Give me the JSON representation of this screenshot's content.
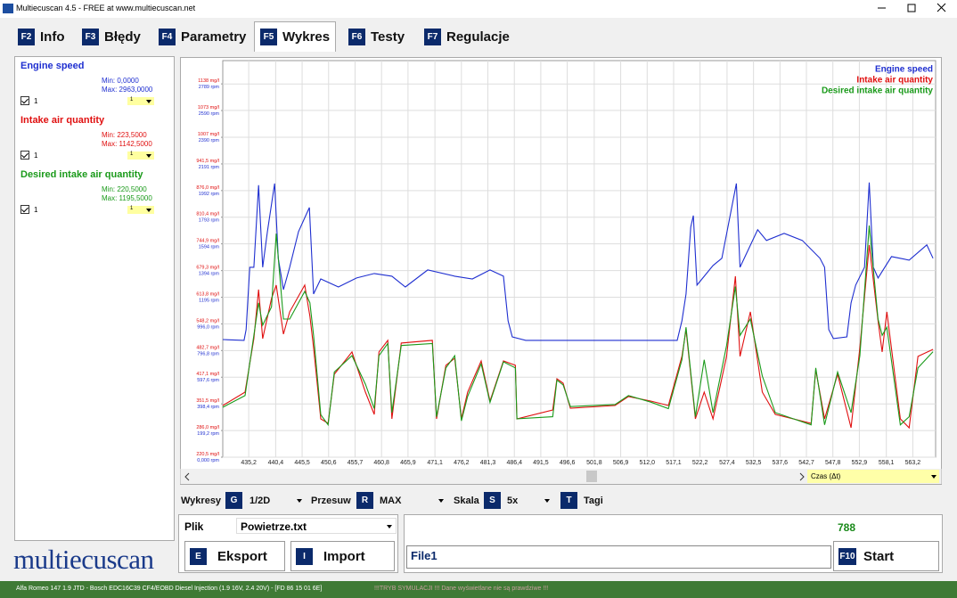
{
  "window": {
    "title": "Multiecuscan 4.5 - FREE at www.multiecuscan.net"
  },
  "tabs": [
    {
      "key": "F2",
      "label": "Info"
    },
    {
      "key": "F3",
      "label": "Błędy"
    },
    {
      "key": "F4",
      "label": "Parametry"
    },
    {
      "key": "F5",
      "label": "Wykres"
    },
    {
      "key": "F6",
      "label": "Testy"
    },
    {
      "key": "F7",
      "label": "Regulacje"
    }
  ],
  "parameters": [
    {
      "name": "Engine speed",
      "min": "Min: 0,0000",
      "max": "Max: 2963,0000",
      "check": "1",
      "scale": "1"
    },
    {
      "name": "Intake air quantity",
      "min": "Min: 223,5000",
      "max": "Max: 1142,5000",
      "check": "1",
      "scale": "1"
    },
    {
      "name": "Desired intake air quantity",
      "min": "Min: 220,5000",
      "max": "Max: 1195,5000",
      "check": "1",
      "scale": "1"
    }
  ],
  "chart_data": {
    "type": "line",
    "grid": true,
    "legend": "top-right",
    "x_axis_selector": "Czas (Δt)",
    "xlim": [
      430.2,
      567.6
    ],
    "xticks": [
      {
        "value": 435.2,
        "label": "435,2"
      },
      {
        "value": 440.4,
        "label": "440,4"
      },
      {
        "value": 445.5,
        "label": "445,5"
      },
      {
        "value": 450.6,
        "label": "450,6"
      },
      {
        "value": 455.7,
        "label": "455,7"
      },
      {
        "value": 460.8,
        "label": "460,8"
      },
      {
        "value": 465.9,
        "label": "465,9"
      },
      {
        "value": 471.1,
        "label": "471,1"
      },
      {
        "value": 476.2,
        "label": "476,2"
      },
      {
        "value": 481.3,
        "label": "481,3"
      },
      {
        "value": 486.4,
        "label": "486,4"
      },
      {
        "value": 491.5,
        "label": "491,5"
      },
      {
        "value": 496.6,
        "label": "496,6"
      },
      {
        "value": 501.8,
        "label": "501,8"
      },
      {
        "value": 506.9,
        "label": "506,9"
      },
      {
        "value": 512.0,
        "label": "512,0"
      },
      {
        "value": 517.1,
        "label": "517,1"
      },
      {
        "value": 522.2,
        "label": "522,2"
      },
      {
        "value": 527.4,
        "label": "527,4"
      },
      {
        "value": 532.5,
        "label": "532,5"
      },
      {
        "value": 537.6,
        "label": "537,6"
      },
      {
        "value": 542.7,
        "label": "542,7"
      },
      {
        "value": 547.8,
        "label": "547,8"
      },
      {
        "value": 552.9,
        "label": "552,9"
      },
      {
        "value": 558.1,
        "label": "558,1"
      },
      {
        "value": 563.2,
        "label": "563,2"
      }
    ],
    "ylim": [
      220.5,
      1195.5
    ],
    "yticks": [
      {
        "value": 220.5,
        "label": "220,5 mg/l"
      },
      {
        "value": 286.0,
        "label": "286,0 mg/l"
      },
      {
        "value": 351.5,
        "label": "351,5 mg/l"
      },
      {
        "value": 417.1,
        "label": "417,1 mg/l"
      },
      {
        "value": 482.7,
        "label": "482,7 mg/l"
      },
      {
        "value": 548.2,
        "label": "548,2 mg/l"
      },
      {
        "value": 613.8,
        "label": "613,8 mg/l"
      },
      {
        "value": 679.3,
        "label": "679,3 mg/l"
      },
      {
        "value": 744.9,
        "label": "744,9 mg/l"
      },
      {
        "value": 810.4,
        "label": "810,4 mg/l"
      },
      {
        "value": 876.0,
        "label": "876,0 mg/l"
      },
      {
        "value": 941.5,
        "label": "941,5 mg/l"
      },
      {
        "value": 1007,
        "label": "1007 mg/l"
      },
      {
        "value": 1073,
        "label": "1073 mg/l"
      },
      {
        "value": 1138,
        "label": "1138 mg/l"
      }
    ],
    "y2lim": [
      0,
      2963
    ],
    "y2ticks": [
      {
        "value": 0,
        "label": "0,000 rpm"
      },
      {
        "value": 199.2,
        "label": "199,2 rpm"
      },
      {
        "value": 398.4,
        "label": "398,4 rpm"
      },
      {
        "value": 597.6,
        "label": "597,6 rpm"
      },
      {
        "value": 796.8,
        "label": "796,8 rpm"
      },
      {
        "value": 996.0,
        "label": "996,0 rpm"
      },
      {
        "value": 1195,
        "label": "1195 rpm"
      },
      {
        "value": 1394,
        "label": "1394 rpm"
      },
      {
        "value": 1594,
        "label": "1594 rpm"
      },
      {
        "value": 1793,
        "label": "1793 rpm"
      },
      {
        "value": 1992,
        "label": "1992 rpm"
      },
      {
        "value": 2191,
        "label": "2191 rpm"
      },
      {
        "value": 2390,
        "label": "2390 rpm"
      },
      {
        "value": 2590,
        "label": "2590 rpm"
      },
      {
        "value": 2789,
        "label": "2789 rpm"
      }
    ],
    "series": [
      {
        "name": "Engine speed",
        "color": "#1f2fd0",
        "axis": "y2",
        "x": [
          430.2,
          434.3,
          434.7,
          435.4,
          436.2,
          437.1,
          437.9,
          438.8,
          440.2,
          440.9,
          441.9,
          443.1,
          444.8,
          446.9,
          447.7,
          449.1,
          452.5,
          456.0,
          459.4,
          462.8,
          465.4,
          469.7,
          474.9,
          478.3,
          481.7,
          484.3,
          485.2,
          486.0,
          488.6,
          498.9,
          507.5,
          517.8,
          518.7,
          519.5,
          520.4,
          520.9,
          521.6,
          524.7,
          526.4,
          529.2,
          529.9,
          533.3,
          535.0,
          538.4,
          541.9,
          545.3,
          546.2,
          547.0,
          547.9,
          550.5,
          551.3,
          552.2,
          553.9,
          554.8,
          555.6,
          556.5,
          559.1,
          562.5,
          565.9,
          567.1
        ],
        "values": [
          879,
          873,
          953,
          1419,
          1419,
          2032,
          1419,
          1685,
          2045,
          1486,
          1252,
          1419,
          1685,
          1865,
          1219,
          1332,
          1272,
          1339,
          1372,
          1352,
          1272,
          1399,
          1352,
          1332,
          1399,
          1352,
          1019,
          899,
          873,
          873,
          873,
          873,
          1019,
          1219,
          1719,
          1805,
          1286,
          1432,
          1486,
          2045,
          1419,
          1699,
          1619,
          1672,
          1619,
          1486,
          1419,
          953,
          886,
          899,
          1153,
          1286,
          1419,
          2052,
          1419,
          1339,
          1499,
          1472,
          1586,
          1486
        ]
      },
      {
        "name": "Intake air quantity",
        "color": "#e01010",
        "x": [
          430.2,
          434.5,
          436.2,
          437.1,
          437.9,
          439.6,
          440.5,
          441.9,
          443.1,
          446.0,
          447.0,
          447.7,
          449.1,
          450.5,
          451.7,
          455.1,
          457.7,
          459.4,
          460.3,
          462.0,
          462.8,
          464.6,
          470.6,
          471.4,
          473.2,
          474.9,
          476.2,
          477.4,
          480.0,
          481.7,
          484.3,
          486.6,
          486.9,
          493.8,
          494.6,
          495.8,
          497.2,
          505.8,
          508.4,
          512.7,
          516.1,
          518.7,
          519.5,
          521.3,
          523.0,
          524.7,
          527.3,
          529.0,
          529.9,
          531.9,
          534.2,
          536.7,
          543.6,
          544.5,
          546.2,
          548.7,
          551.3,
          553.0,
          554.8,
          556.5,
          557.3,
          558.2,
          560.8,
          562.5,
          564.2,
          567.1
        ],
        "values": [
          347.6,
          380.5,
          512.0,
          632.6,
          512.0,
          610.7,
          643.6,
          523.0,
          577.8,
          643.6,
          566.8,
          490.1,
          314.8,
          303.8,
          424.4,
          479.2,
          380.5,
          325.7,
          479.2,
          507.7,
          314.8,
          501.1,
          507.7,
          314.8,
          446.3,
          463.8,
          314.8,
          380.5,
          457.2,
          358.6,
          457.2,
          446.3,
          314.8,
          336.7,
          413.4,
          402.4,
          341.1,
          347.6,
          369.6,
          358.6,
          347.6,
          468.2,
          534.0,
          314.8,
          380.5,
          314.8,
          468.2,
          665.5,
          468.2,
          577.8,
          380.5,
          325.7,
          303.8,
          435.3,
          314.8,
          424.4,
          292.8,
          490.1,
          742.2,
          555.9,
          479.2,
          577.8,
          314.8,
          292.8,
          468.2,
          485.7
        ]
      },
      {
        "name": "Desired intake air quantity",
        "color": "#1a9a1a",
        "x": [
          430.2,
          434.5,
          436.2,
          437.1,
          437.9,
          439.6,
          440.5,
          441.9,
          443.1,
          446.0,
          447.0,
          447.7,
          449.1,
          450.5,
          451.7,
          455.1,
          457.7,
          459.4,
          460.3,
          462.0,
          462.8,
          464.6,
          470.6,
          471.4,
          473.2,
          474.9,
          476.2,
          477.4,
          480.0,
          481.7,
          484.3,
          486.6,
          486.9,
          493.8,
          494.6,
          495.8,
          497.2,
          505.8,
          508.4,
          512.7,
          516.1,
          518.7,
          519.5,
          521.3,
          523.0,
          524.7,
          527.3,
          529.0,
          529.9,
          531.9,
          534.2,
          536.7,
          543.6,
          544.5,
          546.2,
          548.7,
          551.3,
          553.0,
          554.8,
          556.5,
          557.3,
          558.2,
          560.8,
          562.5,
          564.2,
          567.1
        ],
        "values": [
          343.2,
          372,
          520,
          600,
          545,
          590,
          770,
          560,
          560,
          628,
          600,
          520,
          325,
          300,
          430,
          470,
          400,
          340,
          470,
          500,
          330,
          495,
          500,
          320,
          440,
          470,
          310,
          370,
          450,
          355,
          455,
          440,
          315,
          320,
          410,
          398,
          345,
          350,
          372,
          356,
          340,
          460,
          540,
          320,
          460,
          330,
          495,
          640,
          520,
          560,
          420,
          330,
          300,
          440,
          300,
          430,
          330,
          470,
          790,
          560,
          520,
          540,
          300,
          320,
          440,
          480
        ]
      }
    ]
  },
  "controls": {
    "charts_label": "Wykresy",
    "charts_key": "G",
    "charts_value": "1/2D",
    "shift_label": "Przesuw",
    "shift_key": "R",
    "shift_value": "MAX",
    "scale_label": "Skala",
    "scale_key": "S",
    "scale_value": "5x",
    "tags_key": "T",
    "tags_label": "Tagi"
  },
  "file": {
    "label": "Plik",
    "name": "Powietrze.txt",
    "export_key": "E",
    "export": "Eksport",
    "import_key": "I",
    "import": "Import"
  },
  "recorder": {
    "counter": 788,
    "file_name": "File1",
    "start_key": "F10",
    "start": "Start"
  },
  "logo": "multiecuscan",
  "status": {
    "vehicle": "Alfa Romeo 147 1.9 JTD - Bosch EDC16C39 CF4/EOBD Diesel Injection (1.9 16V, 2.4 20V) - [FD 86 15 01 6E]",
    "warning": "!!!TRYB SYMULACJI !!! Dane wyświetlane nie są prawdziwe !!!"
  }
}
